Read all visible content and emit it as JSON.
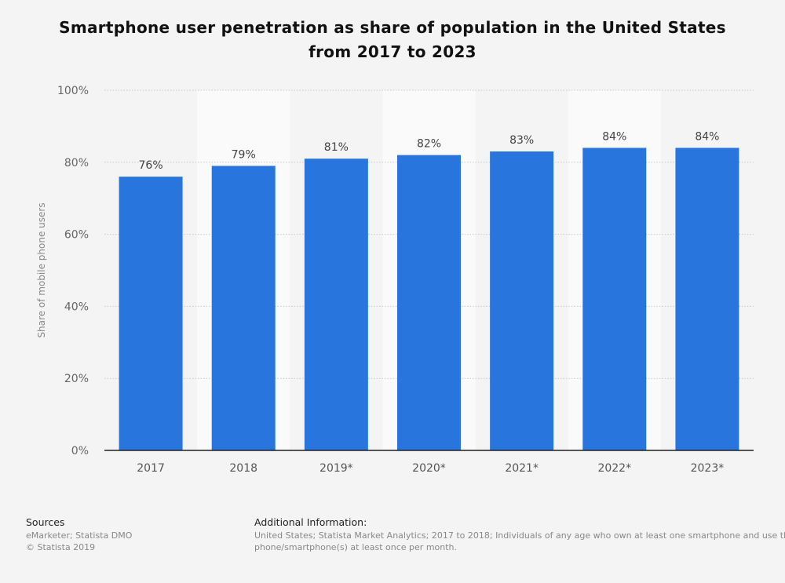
{
  "chart_data": {
    "type": "bar",
    "title": "Smartphone user penetration as share of population in the United States from 2017 to 2023",
    "xlabel": "",
    "ylabel": "Share of mobile phone users",
    "categories": [
      "2017",
      "2018",
      "2019*",
      "2020*",
      "2021*",
      "2022*",
      "2023*"
    ],
    "values": [
      76,
      79,
      81,
      82,
      83,
      84,
      84
    ],
    "data_labels": [
      "76%",
      "79%",
      "81%",
      "82%",
      "83%",
      "84%",
      "84%"
    ],
    "ylim": [
      0,
      100
    ],
    "yticks": [
      0,
      20,
      40,
      60,
      80,
      100
    ],
    "ytick_labels": [
      "0%",
      "20%",
      "40%",
      "60%",
      "80%",
      "100%"
    ],
    "grid": true,
    "legend": "none",
    "bar_color": "#2876dd"
  },
  "footer": {
    "sources_heading": "Sources",
    "sources": "eMarketer; Statista DMO",
    "copyright": "© Statista 2019",
    "additional_heading": "Additional Information:",
    "additional_line1": "United States; Statista Market Analytics; 2017 to 2018; Individuals of any age who own at least one smartphone and use the",
    "additional_line2": "phone/smartphone(s) at least once per month."
  }
}
